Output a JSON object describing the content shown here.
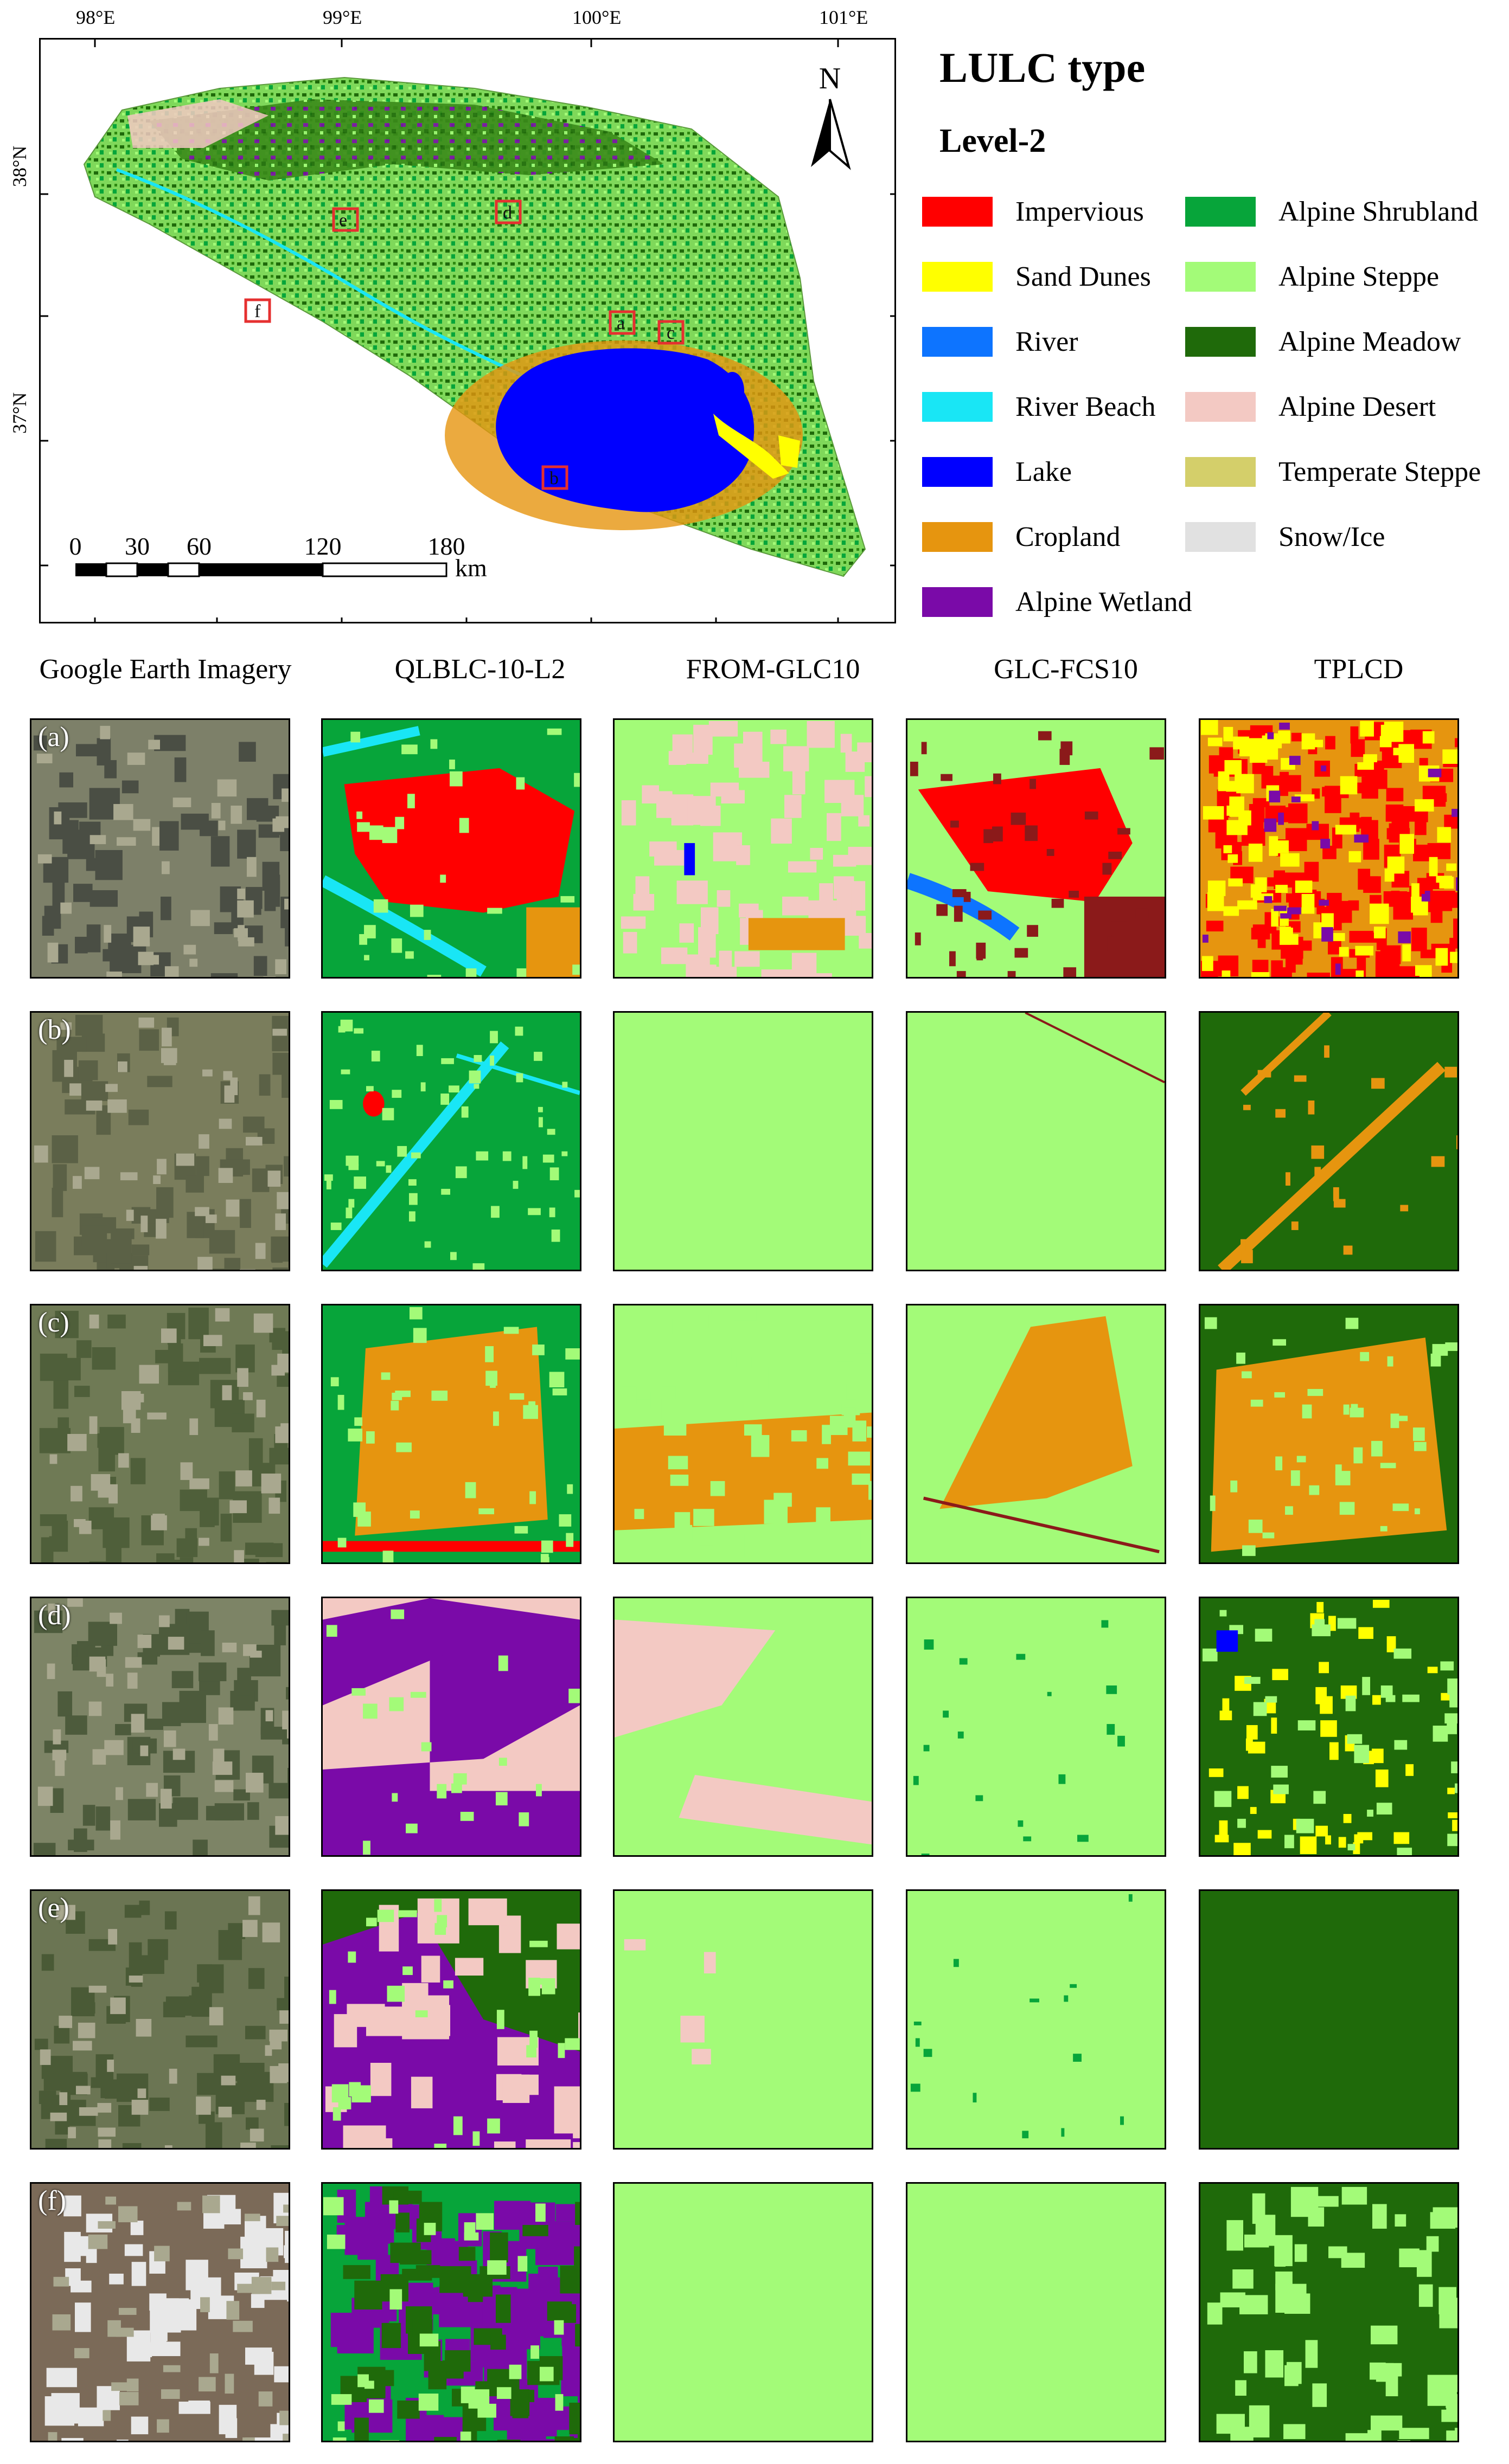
{
  "map": {
    "top_ticks": [
      "98°E",
      "99°E",
      "100°E",
      "101°E"
    ],
    "left_ticks": [
      "38°N",
      "37°N"
    ],
    "north_label": "N",
    "scale_numbers": [
      "0",
      "30",
      "60",
      "120",
      "180"
    ],
    "scale_unit": "km",
    "sites": [
      "a",
      "b",
      "c",
      "d",
      "e",
      "f"
    ]
  },
  "legend": {
    "title": "LULC type",
    "subtitle": "Level-2",
    "items": [
      {
        "label": "Impervious",
        "color": "#ff0000"
      },
      {
        "label": "Sand Dunes",
        "color": "#ffff00"
      },
      {
        "label": "River",
        "color": "#0d74ff"
      },
      {
        "label": "River Beach",
        "color": "#19e6f5"
      },
      {
        "label": "Lake",
        "color": "#0000ff"
      },
      {
        "label": "Cropland",
        "color": "#e6950f"
      },
      {
        "label": "Alpine Wetland",
        "color": "#7a0aa8"
      },
      {
        "label": "Alpine Shrubland",
        "color": "#07a53a"
      },
      {
        "label": "Alpine Steppe",
        "color": "#a3fb78"
      },
      {
        "label": "Alpine Meadow",
        "color": "#1f6a0a"
      },
      {
        "label": "Alpine Desert",
        "color": "#f3c9c3"
      },
      {
        "label": "Temperate Steppe",
        "color": "#d4cf6a"
      },
      {
        "label": "Snow/Ice",
        "color": "#e1e1e1"
      }
    ]
  },
  "grid": {
    "columns": [
      "Google Earth Imagery",
      "QLBLC-10-L2",
      "FROM-GLC10",
      "GLC-FCS10",
      "TPLCD"
    ],
    "rows": [
      "(a)",
      "(b)",
      "(c)",
      "(d)",
      "(e)",
      "(f)"
    ]
  }
}
